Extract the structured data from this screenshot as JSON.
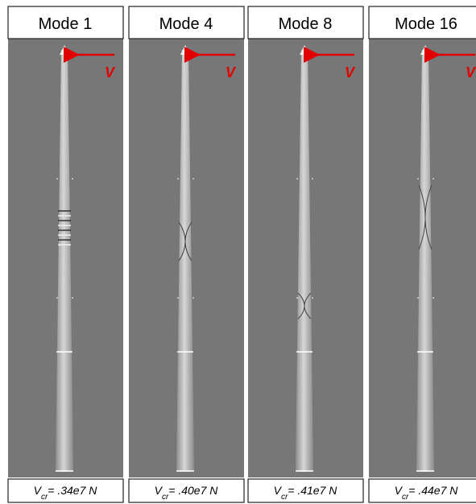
{
  "panels": [
    {
      "title": "Mode 1",
      "force": "V",
      "critical": {
        "symbol": "V",
        "subscript": "cr",
        "value": "= .34e7 N"
      }
    },
    {
      "title": "Mode 4",
      "force": "V",
      "critical": {
        "symbol": "V",
        "subscript": "cr",
        "value": "= .40e7 N"
      }
    },
    {
      "title": "Mode 8",
      "force": "V",
      "critical": {
        "symbol": "V",
        "subscript": "cr",
        "value": "= .41e7 N"
      }
    },
    {
      "title": "Mode 16",
      "force": "V",
      "critical": {
        "symbol": "V",
        "subscript": "cr",
        "value": "= .44e7 N"
      }
    }
  ]
}
